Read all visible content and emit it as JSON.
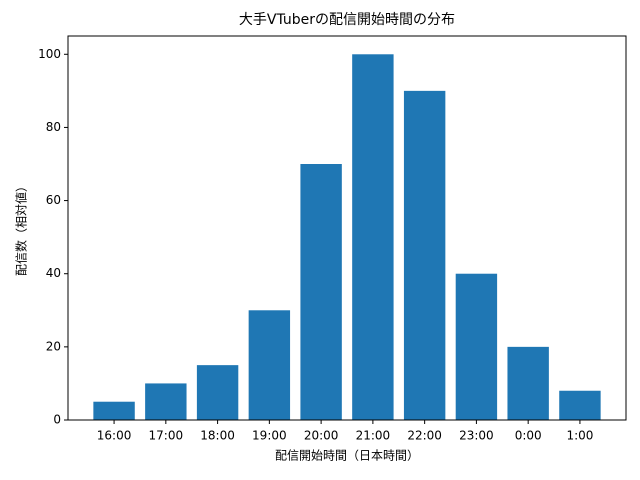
{
  "chart_data": {
    "type": "bar",
    "title": "大手VTuberの配信開始時間の分布",
    "x_label": "配信開始時間（日本時間）",
    "y_label": "配信数（相対値）",
    "categories": [
      "16:00",
      "17:00",
      "18:00",
      "19:00",
      "20:00",
      "21:00",
      "22:00",
      "23:00",
      "0:00",
      "1:00"
    ],
    "values": [
      5,
      10,
      15,
      30,
      70,
      100,
      90,
      40,
      20,
      8
    ],
    "color": "#1f77b4",
    "ylim": [
      0,
      105
    ],
    "yticks": [
      0,
      20,
      40,
      60,
      80,
      100
    ],
    "grid": false
  }
}
